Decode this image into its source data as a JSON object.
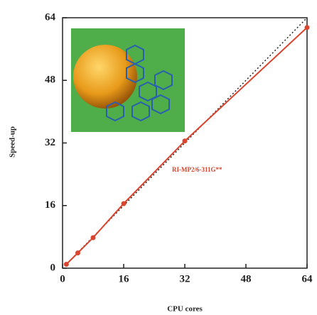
{
  "chart_data": {
    "type": "line",
    "x_label": "CPU cores",
    "y_label": "Speed-up",
    "annotation": "RI-MP2/6-311G**",
    "x": [
      1,
      4,
      8,
      16,
      32,
      64
    ],
    "series": [
      {
        "color": "#d9452e",
        "values": [
          1,
          3.9,
          7.8,
          16.5,
          32.5,
          61.5
        ],
        "style": "solid",
        "markers": true
      },
      {
        "color": "#222222",
        "values": [
          1,
          4,
          8,
          16,
          32,
          64
        ],
        "style": "dotted",
        "markers": false
      }
    ],
    "xlim": [
      0,
      64
    ],
    "ylim": [
      0,
      64
    ],
    "xticks": [
      0,
      16,
      32,
      48,
      64
    ],
    "yticks": [
      0,
      16,
      32,
      48,
      64
    ]
  }
}
